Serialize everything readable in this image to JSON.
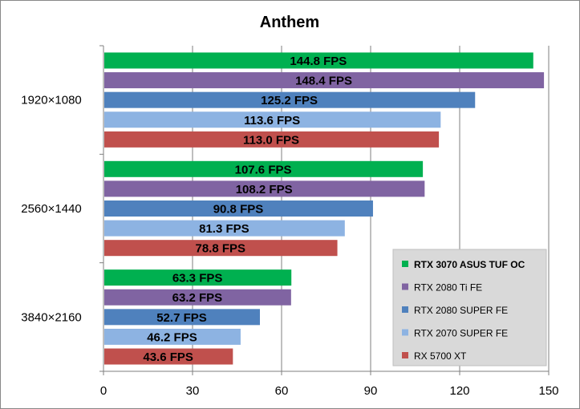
{
  "chart_data": {
    "type": "bar",
    "orientation": "horizontal",
    "title": "Anthem",
    "xlabel": "",
    "ylabel": "",
    "xlim": [
      0,
      150
    ],
    "xticks": [
      0,
      30,
      60,
      90,
      120,
      150
    ],
    "grid": true,
    "legend_position": "bottom-right",
    "categories": [
      "1920×1080",
      "2560×1440",
      "3840×2160"
    ],
    "series": [
      {
        "name": "RTX 3070 ASUS TUF OC",
        "color": "#00b050",
        "values": [
          144.8,
          107.6,
          63.3
        ],
        "labels": [
          "144.8 FPS",
          "107.6 FPS",
          "63.3 FPS"
        ]
      },
      {
        "name": "RTX 2080 Ti FE",
        "color": "#8064a2",
        "values": [
          148.4,
          108.2,
          63.2
        ],
        "labels": [
          "148.4 FPS",
          "108.2 FPS",
          "63.2 FPS"
        ]
      },
      {
        "name": "RTX 2080 SUPER FE",
        "color": "#4f81bd",
        "values": [
          125.2,
          90.8,
          52.7
        ],
        "labels": [
          "125.2 FPS",
          "90.8 FPS",
          "52.7 FPS"
        ]
      },
      {
        "name": "RTX 2070 SUPER FE",
        "color": "#8db3e2",
        "values": [
          113.6,
          81.3,
          46.2
        ],
        "labels": [
          "113.6 FPS",
          "81.3 FPS",
          "46.2 FPS"
        ]
      },
      {
        "name": "RX 5700 XT",
        "color": "#c0504d",
        "values": [
          113.0,
          78.8,
          43.6
        ],
        "labels": [
          "113.0 FPS",
          "78.8 FPS",
          "43.6 FPS"
        ]
      }
    ]
  }
}
